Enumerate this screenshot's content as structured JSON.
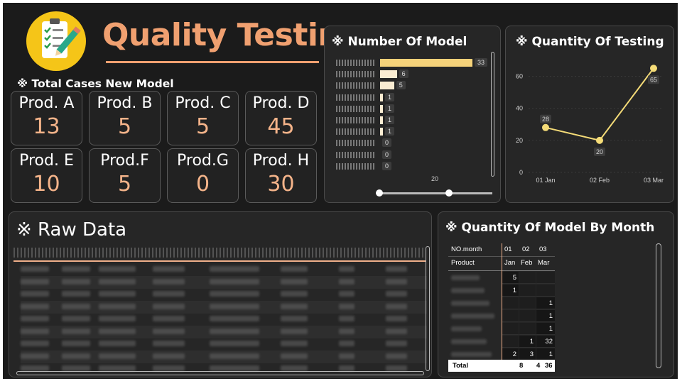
{
  "header": {
    "title": "Quality Testing",
    "icon": "checklist-pencil-icon"
  },
  "total_cases": {
    "title": "※ Total Cases New Model",
    "items": [
      {
        "label": "Prod. A",
        "value": "13"
      },
      {
        "label": "Prod. B",
        "value": "5"
      },
      {
        "label": "Prod. C",
        "value": "5"
      },
      {
        "label": "Prod. D",
        "value": "45"
      },
      {
        "label": "Prod. E",
        "value": "10"
      },
      {
        "label": "Prod.F",
        "value": "5"
      },
      {
        "label": "Prod.G",
        "value": "0"
      },
      {
        "label": "Prod. H",
        "value": "30"
      }
    ]
  },
  "number_of_model": {
    "title": "※ Number Of Model",
    "axis_tick": "20",
    "chart_data": {
      "type": "bar",
      "orientation": "horizontal",
      "values": [
        33,
        6,
        5,
        1,
        1,
        1,
        1,
        0,
        0,
        0
      ],
      "labels": [
        "33",
        "6",
        "5",
        "1",
        "1",
        "1",
        "1",
        "0",
        "0",
        "0"
      ],
      "xlim": [
        0,
        40
      ],
      "colors": [
        "#f5d27a",
        "#f9ecd2"
      ]
    }
  },
  "quantity_of_testing": {
    "title": "※ Quantity Of Testing",
    "chart_data": {
      "type": "line",
      "categories": [
        "01 Jan",
        "02 Feb",
        "03 Mar"
      ],
      "values": [
        28,
        20,
        65
      ],
      "labels": [
        "28",
        "20",
        "65"
      ],
      "yticks": [
        "0",
        "20",
        "40",
        "60"
      ],
      "ylim": [
        0,
        70
      ],
      "color": "#f5dc78"
    }
  },
  "raw_data": {
    "title": "※ Raw Data",
    "rows": 9
  },
  "matrix": {
    "title": "※ Quantity Of Model By Month",
    "header_row1": [
      "NO.month",
      "01",
      "02",
      "03"
    ],
    "header_row2": [
      "Product",
      "Jan",
      "Feb",
      "Mar"
    ],
    "rows": [
      [
        "",
        "5",
        "",
        ""
      ],
      [
        "",
        "1",
        "",
        ""
      ],
      [
        "",
        "",
        "",
        "1"
      ],
      [
        "",
        "",
        "",
        "1"
      ],
      [
        "",
        "",
        "",
        "1"
      ],
      [
        "",
        "",
        "1",
        "32"
      ],
      [
        "",
        "2",
        "3",
        "1"
      ]
    ],
    "total": [
      "Total",
      "8",
      "4",
      "36"
    ]
  }
}
